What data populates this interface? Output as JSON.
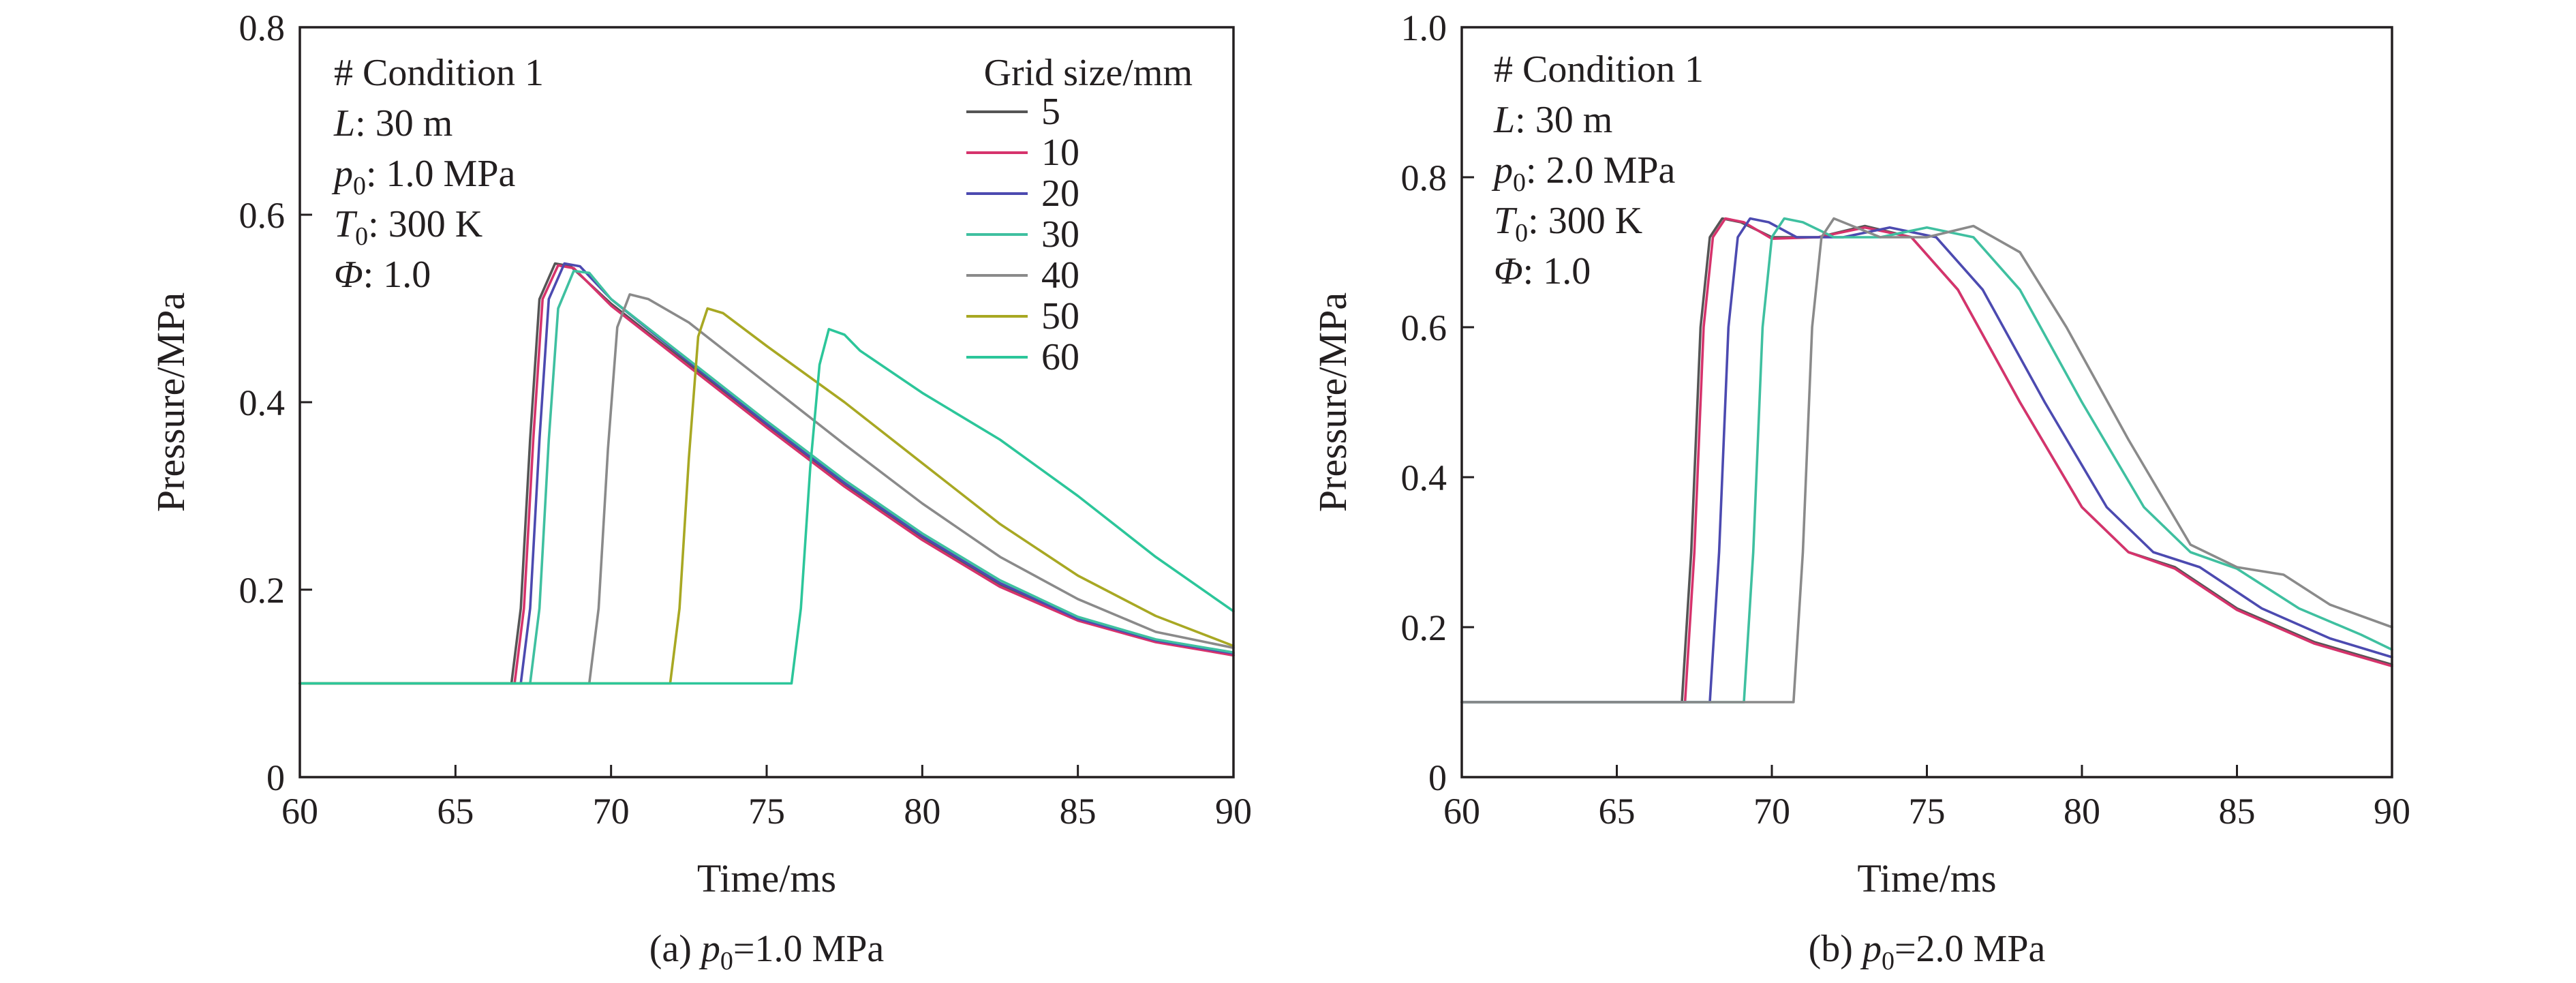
{
  "chart_data": [
    {
      "type": "line",
      "panel_id": "a",
      "caption": {
        "prefix": "(a) ",
        "var": "p",
        "sub": "0",
        "suffix": "=1.0 MPa"
      },
      "xlabel": "Time/ms",
      "ylabel": "Pressure/MPa",
      "xlim": [
        60,
        90
      ],
      "ylim": [
        0,
        0.8
      ],
      "xticks": [
        60,
        65,
        70,
        75,
        80,
        85,
        90
      ],
      "yticks": [
        0,
        0.2,
        0.4,
        0.6,
        0.8
      ],
      "ytick_labels": [
        "0",
        "0.2",
        "0.4",
        "0.6",
        "0.8"
      ],
      "grid": false,
      "legend_placement": "top-right",
      "legend_title": "Grid size/mm",
      "conditions": [
        {
          "text": "# Condition 1"
        },
        {
          "var": "L",
          "sub": "",
          "rest": ": 30 m"
        },
        {
          "var": "p",
          "sub": "0",
          "rest": ": 1.0 MPa"
        },
        {
          "var": "T",
          "sub": "0",
          "rest": ": 300 K"
        },
        {
          "var": "Φ",
          "sub": "",
          "rest": ": 1.0"
        }
      ],
      "series": [
        {
          "name": "5",
          "color": "#555555",
          "x": [
            60,
            66.8,
            67.1,
            67.4,
            67.7,
            68.2,
            68.7,
            70,
            72.5,
            75,
            77.5,
            80,
            82.5,
            85,
            87.5,
            90
          ],
          "y": [
            0.1,
            0.1,
            0.18,
            0.36,
            0.51,
            0.548,
            0.545,
            0.505,
            0.44,
            0.375,
            0.312,
            0.255,
            0.205,
            0.168,
            0.145,
            0.13
          ]
        },
        {
          "name": "10",
          "color": "#d6336c",
          "x": [
            60,
            66.9,
            67.2,
            67.5,
            67.8,
            68.3,
            68.8,
            70,
            72.5,
            75,
            77.5,
            80,
            82.5,
            85,
            87.5,
            90
          ],
          "y": [
            0.1,
            0.1,
            0.18,
            0.36,
            0.51,
            0.546,
            0.543,
            0.503,
            0.438,
            0.373,
            0.31,
            0.253,
            0.203,
            0.167,
            0.144,
            0.13
          ]
        },
        {
          "name": "20",
          "color": "#4c4ab0",
          "x": [
            60,
            67.1,
            67.4,
            67.7,
            68.0,
            68.5,
            69.0,
            70,
            72.5,
            75,
            77.5,
            80,
            82.5,
            85,
            87.5,
            90
          ],
          "y": [
            0.1,
            0.1,
            0.18,
            0.36,
            0.51,
            0.548,
            0.545,
            0.51,
            0.443,
            0.377,
            0.314,
            0.257,
            0.207,
            0.169,
            0.146,
            0.132
          ]
        },
        {
          "name": "30",
          "color": "#3fc0a0",
          "x": [
            60,
            67.4,
            67.7,
            68.0,
            68.3,
            68.8,
            69.3,
            70,
            72.5,
            75,
            77.5,
            80,
            82.5,
            85,
            87.5,
            90
          ],
          "y": [
            0.1,
            0.1,
            0.18,
            0.36,
            0.5,
            0.54,
            0.538,
            0.51,
            0.445,
            0.38,
            0.317,
            0.26,
            0.21,
            0.171,
            0.147,
            0.133
          ]
        },
        {
          "name": "40",
          "color": "#8a8a8a",
          "x": [
            60,
            69.3,
            69.6,
            69.9,
            70.2,
            70.6,
            71.2,
            72.5,
            75,
            77.5,
            80,
            82.5,
            85,
            87.5,
            90
          ],
          "y": [
            0.1,
            0.1,
            0.18,
            0.35,
            0.48,
            0.515,
            0.51,
            0.485,
            0.42,
            0.355,
            0.292,
            0.235,
            0.19,
            0.155,
            0.138
          ]
        },
        {
          "name": "50",
          "color": "#a8a823",
          "x": [
            60,
            71.9,
            72.2,
            72.5,
            72.8,
            73.1,
            73.6,
            75,
            77.5,
            80,
            82.5,
            85,
            87.5,
            90
          ],
          "y": [
            0.1,
            0.1,
            0.18,
            0.34,
            0.47,
            0.5,
            0.495,
            0.46,
            0.4,
            0.335,
            0.27,
            0.215,
            0.172,
            0.14
          ]
        },
        {
          "name": "60",
          "color": "#2cc69a",
          "x": [
            60,
            75.8,
            76.1,
            76.4,
            76.7,
            77.0,
            77.5,
            78,
            80,
            82.5,
            85,
            87.5,
            90
          ],
          "y": [
            0.1,
            0.1,
            0.18,
            0.33,
            0.44,
            0.478,
            0.472,
            0.455,
            0.41,
            0.36,
            0.3,
            0.235,
            0.177
          ]
        }
      ]
    },
    {
      "type": "line",
      "panel_id": "b",
      "caption": {
        "prefix": "(b) ",
        "var": "p",
        "sub": "0",
        "suffix": "=2.0 MPa"
      },
      "xlabel": "Time/ms",
      "ylabel": "Pressure/MPa",
      "xlim": [
        60,
        90
      ],
      "ylim": [
        0,
        1.0
      ],
      "xticks": [
        60,
        65,
        70,
        75,
        80,
        85,
        90
      ],
      "yticks": [
        0,
        0.2,
        0.4,
        0.6,
        0.8,
        1.0
      ],
      "ytick_labels": [
        "0",
        "0.2",
        "0.4",
        "0.6",
        "0.8",
        "1.0"
      ],
      "grid": false,
      "conditions": [
        {
          "text": "# Condition 1"
        },
        {
          "var": "L",
          "sub": "",
          "rest": ": 30 m"
        },
        {
          "var": "p",
          "sub": "0",
          "rest": ": 2.0 MPa"
        },
        {
          "var": "T",
          "sub": "0",
          "rest": ": 300 K"
        },
        {
          "var": "Φ",
          "sub": "",
          "rest": ": 1.0"
        }
      ],
      "series": [
        {
          "name": "5",
          "color": "#555555",
          "x": [
            60,
            67.1,
            67.4,
            67.7,
            68.0,
            68.4,
            69,
            70,
            71.5,
            73,
            74.5,
            76,
            78,
            80,
            81.5,
            83,
            85,
            87.5,
            90
          ],
          "y": [
            0.1,
            0.1,
            0.3,
            0.6,
            0.72,
            0.745,
            0.74,
            0.72,
            0.72,
            0.735,
            0.72,
            0.65,
            0.5,
            0.36,
            0.3,
            0.28,
            0.225,
            0.18,
            0.15
          ]
        },
        {
          "name": "10",
          "color": "#d6336c",
          "x": [
            60,
            67.2,
            67.5,
            67.8,
            68.1,
            68.5,
            69.1,
            70,
            71.5,
            73,
            74.5,
            76,
            78,
            80,
            81.5,
            83,
            85,
            87.5,
            90
          ],
          "y": [
            0.1,
            0.1,
            0.3,
            0.6,
            0.72,
            0.745,
            0.74,
            0.718,
            0.72,
            0.733,
            0.72,
            0.65,
            0.5,
            0.36,
            0.3,
            0.278,
            0.223,
            0.178,
            0.148
          ]
        },
        {
          "name": "20",
          "color": "#4c4ab0",
          "x": [
            60,
            68.0,
            68.3,
            68.6,
            68.9,
            69.3,
            69.9,
            70.8,
            72.3,
            73.8,
            75.3,
            76.8,
            78.8,
            80.8,
            82.3,
            83.8,
            85.8,
            88,
            90
          ],
          "y": [
            0.1,
            0.1,
            0.3,
            0.6,
            0.72,
            0.745,
            0.74,
            0.72,
            0.72,
            0.733,
            0.72,
            0.65,
            0.5,
            0.36,
            0.3,
            0.28,
            0.225,
            0.185,
            0.16
          ]
        },
        {
          "name": "30",
          "color": "#3fc0a0",
          "x": [
            60,
            69.1,
            69.4,
            69.7,
            70.0,
            70.4,
            71,
            72,
            73.5,
            75,
            76.5,
            78,
            80,
            82,
            83.5,
            85,
            87,
            89,
            90
          ],
          "y": [
            0.1,
            0.1,
            0.3,
            0.6,
            0.72,
            0.745,
            0.74,
            0.72,
            0.72,
            0.733,
            0.72,
            0.65,
            0.5,
            0.36,
            0.3,
            0.278,
            0.225,
            0.19,
            0.17
          ]
        },
        {
          "name": "40",
          "color": "#8a8a8a",
          "x": [
            60,
            70.7,
            71.0,
            71.3,
            71.6,
            72.0,
            72.6,
            73.5,
            75,
            76.5,
            78,
            79.5,
            81.5,
            83.5,
            85,
            86.5,
            88,
            90
          ],
          "y": [
            0.1,
            0.1,
            0.3,
            0.6,
            0.72,
            0.745,
            0.735,
            0.72,
            0.72,
            0.735,
            0.7,
            0.6,
            0.45,
            0.31,
            0.28,
            0.27,
            0.23,
            0.2
          ]
        }
      ]
    }
  ]
}
